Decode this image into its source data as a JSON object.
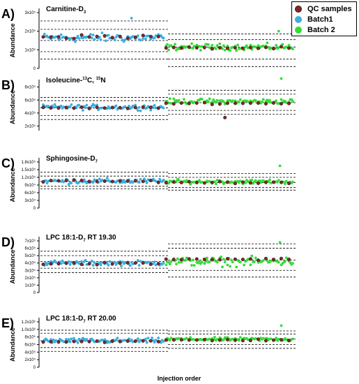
{
  "legend": {
    "items": [
      {
        "label": "QC samples",
        "color": "#8b2323"
      },
      {
        "label": "Batch1",
        "color": "#3daee0"
      },
      {
        "label": "Batch 2",
        "color": "#33dd33"
      }
    ]
  },
  "xlabel": "Injection order",
  "chart_data": [
    {
      "type": "scatter",
      "panel": "A)",
      "title": "Carnitine-D3",
      "title_main": "Carnitine-D",
      "title_sub": "3",
      "title_sup": "",
      "title_tail": "",
      "ylabel": "Abundance",
      "yticks": [
        0,
        100000.0,
        200000.0,
        300000.0
      ],
      "ytick_labels": [
        "0",
        "1x10⁵",
        "2x10⁵",
        "3x10⁵"
      ],
      "ylim": [
        0,
        300000.0
      ],
      "x_range": [
        1,
        196
      ],
      "batch_split": 96,
      "guides": {
        "batch1": [
          50000.0,
          90000.0,
          150000.0,
          210000.0,
          255000.0
        ],
        "batch2": [
          10000.0,
          50000.0,
          115000.0,
          155000.0,
          185000.0
        ]
      },
      "series": [
        {
          "name": "QC samples",
          "mean_b1": 170000.0,
          "spread_b1": 15000.0,
          "mean_b2": 110000.0,
          "spread_b2": 8000.0
        },
        {
          "name": "Batch1",
          "mean": 165000.0,
          "spread": 35000.0
        },
        {
          "name": "Batch 2",
          "mean": 115000.0,
          "spread": 25000.0
        }
      ],
      "outliers": [
        {
          "series": "Batch1",
          "x": 70,
          "y": 270000.0
        },
        {
          "series": "Batch 2",
          "x": 185,
          "y": 200000.0
        }
      ]
    },
    {
      "type": "scatter",
      "panel": "B)",
      "title": "Isoleucine-13C, 15N",
      "title_main": "Isoleucine-",
      "title_sub": "",
      "title_sup": "13",
      "title_tail": "C, ",
      "title_sup2": "15",
      "title_tail2": "N",
      "ylabel": "Abundance",
      "yticks": [
        200000.0,
        400000.0,
        600000.0,
        800000.0
      ],
      "ytick_labels": [
        "2x10⁵",
        "4x10⁵",
        "6x10⁵",
        "8x10⁵"
      ],
      "ylim": [
        130000.0,
        850000.0
      ],
      "x_range": [
        1,
        196
      ],
      "batch_split": 96,
      "guides": {
        "batch1": [
          300000.0,
          360000.0,
          480000.0,
          590000.0,
          640000.0
        ],
        "batch2": [
          380000.0,
          440000.0,
          560000.0,
          690000.0,
          750000.0
        ]
      },
      "series": [
        {
          "name": "QC samples",
          "mean_b1": 480000.0,
          "spread_b1": 20000.0,
          "mean_b2": 550000.0,
          "spread_b2": 20000.0
        },
        {
          "name": "Batch1",
          "mean": 490000.0,
          "spread": 60000.0
        },
        {
          "name": "Batch 2",
          "mean": 580000.0,
          "spread": 55000.0
        }
      ],
      "outliers": [
        {
          "series": "Batch 2",
          "x": 187,
          "y": 930000.0
        },
        {
          "series": "QC samples",
          "x": 143,
          "y": 330000.0
        }
      ]
    },
    {
      "type": "scatter",
      "panel": "C)",
      "title": "Sphingosine-D7",
      "title_main": "Sphingosine-D",
      "title_sub": "7",
      "title_sup": "",
      "title_tail": "",
      "ylabel": "Abundance",
      "yticks": [
        0,
        30000.0,
        60000.0,
        90000.0,
        120000.0,
        150000.0,
        180000.0
      ],
      "ytick_labels": [
        "0",
        "3x10⁴",
        "6x10⁴",
        "9x10⁴",
        "1.2x10⁵",
        "1.5x10⁵",
        "1.8x10⁵"
      ],
      "ylim": [
        0,
        180000.0
      ],
      "x_range": [
        1,
        196
      ],
      "batch_split": 96,
      "guides": {
        "batch1": [
          75000.0,
          85000.0,
          105000.0,
          125000.0,
          140000.0
        ],
        "batch2": [
          70000.0,
          80000.0,
          100000.0,
          120000.0,
          135000.0
        ]
      },
      "series": [
        {
          "name": "QC samples",
          "mean_b1": 105000.0,
          "spread_b1": 8000.0,
          "mean_b2": 100000.0,
          "spread_b2": 6000.0
        },
        {
          "name": "Batch1",
          "mean": 105000.0,
          "spread": 15000.0
        },
        {
          "name": "Batch 2",
          "mean": 103000.0,
          "spread": 12000.0
        }
      ],
      "outliers": [
        {
          "series": "Batch 2",
          "x": 186,
          "y": 165000.0
        }
      ]
    },
    {
      "type": "scatter",
      "panel": "D)",
      "title": "LPC 18:1-D7 RT 19.30",
      "title_main": "LPC 18:1-D",
      "title_sub": "7",
      "title_sup": "",
      "title_tail": " RT 19.30",
      "ylabel": "Abundance",
      "yticks": [
        0,
        100000.0,
        200000.0,
        300000.0,
        400000.0,
        500000.0,
        600000.0,
        700000.0
      ],
      "ytick_labels": [
        "0",
        "1x10⁵",
        "2x10⁵",
        "3x10⁵",
        "4x10⁵",
        "5x10⁵",
        "6x10⁵",
        "7x10⁵"
      ],
      "ylim": [
        0,
        700000.0
      ],
      "x_range": [
        1,
        196
      ],
      "batch_split": 96,
      "guides": {
        "batch1": [
          270000.0,
          330000.0,
          420000.0,
          500000.0,
          560000.0
        ],
        "batch2": [
          210000.0,
          300000.0,
          440000.0,
          600000.0,
          660000.0
        ]
      },
      "series": [
        {
          "name": "QC samples",
          "mean_b1": 390000.0,
          "spread_b1": 25000.0,
          "mean_b2": 450000.0,
          "spread_b2": 20000.0
        },
        {
          "name": "Batch1",
          "mean": 400000.0,
          "spread": 50000.0
        },
        {
          "name": "Batch 2",
          "mean": 420000.0,
          "spread": 90000.0
        }
      ],
      "outliers": [
        {
          "series": "Batch 2",
          "x": 186,
          "y": 680000.0
        }
      ]
    },
    {
      "type": "scatter",
      "panel": "E)",
      "title": "LPC 18:1-D7 RT 20.00",
      "title_main": "LPC 18:1-D",
      "title_sub": "7",
      "title_sup": "",
      "title_tail": " RT 20.00",
      "ylabel": "Abundance",
      "yticks": [
        0,
        200000.0,
        400000.0,
        600000.0,
        800000.0,
        1000000.0,
        1200000.0
      ],
      "ytick_labels": [
        "0",
        "2x10⁵",
        "4x10⁵",
        "6x10⁵",
        "8x10⁵",
        "1.0x10⁶",
        "1.2x10⁶"
      ],
      "ylim": [
        0,
        1200000.0
      ],
      "x_range": [
        1,
        196
      ],
      "batch_split": 96,
      "guides": {
        "batch1": [
          420000.0,
          520000.0,
          700000.0,
          900000.0,
          980000.0
        ],
        "batch2": [
          500000.0,
          600000.0,
          750000.0,
          880000.0,
          960000.0
        ]
      },
      "series": [
        {
          "name": "QC samples",
          "mean_b1": 680000.0,
          "spread_b1": 40000.0,
          "mean_b2": 720000.0,
          "spread_b2": 35000.0
        },
        {
          "name": "Batch1",
          "mean": 700000.0,
          "spread": 100000.0
        },
        {
          "name": "Batch 2",
          "mean": 740000.0,
          "spread": 70000.0
        }
      ],
      "outliers": [
        {
          "series": "Batch 2",
          "x": 187,
          "y": 1100000.0
        }
      ]
    }
  ]
}
